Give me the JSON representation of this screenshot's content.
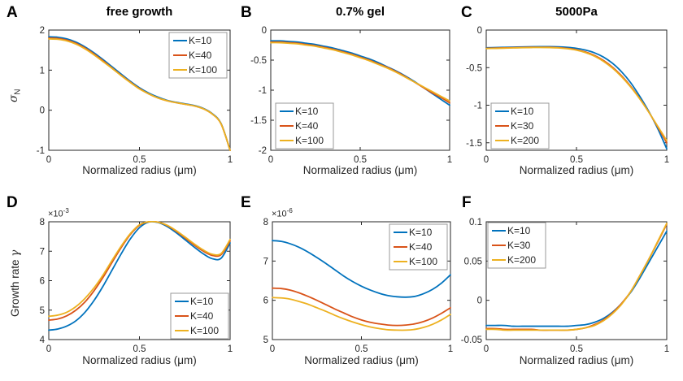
{
  "labels": {
    "xlabel": "Normalized radius (μm)"
  },
  "colors": {
    "axis": "#262626",
    "tick_text": "#262626",
    "legend_border": "#999999",
    "series_blue": "#0072BD",
    "series_orange": "#D95319",
    "series_yellow": "#EDB120"
  },
  "chart_data": [
    {
      "type": "line",
      "letter": "A",
      "title": "free growth",
      "ylabel_prefix": "",
      "ylabel_greek": "σ",
      "ylabel_sub": "N",
      "exp_base": "",
      "exp_power": "",
      "xlim": [
        0,
        1
      ],
      "ylim": [
        -1,
        2
      ],
      "xticks": [
        0,
        0.5,
        1
      ],
      "xtick_labels": [
        "0",
        "0.5",
        "1"
      ],
      "yticks": [
        -1,
        0,
        1,
        2
      ],
      "ytick_labels": [
        "-1",
        "0",
        "1",
        "2"
      ],
      "grid": false,
      "legend": {
        "position": "top-right"
      },
      "x": [
        0,
        0.05,
        0.1,
        0.15,
        0.2,
        0.25,
        0.3,
        0.35,
        0.4,
        0.45,
        0.5,
        0.55,
        0.6,
        0.65,
        0.7,
        0.75,
        0.8,
        0.85,
        0.9,
        0.95,
        1
      ],
      "series": [
        {
          "name": "K=10",
          "color": "#0072BD",
          "values": [
            1.83,
            1.82,
            1.78,
            1.7,
            1.58,
            1.43,
            1.26,
            1.08,
            0.9,
            0.72,
            0.56,
            0.43,
            0.33,
            0.25,
            0.2,
            0.16,
            0.12,
            0.05,
            -0.08,
            -0.33,
            -1.0
          ]
        },
        {
          "name": "K=40",
          "color": "#D95319",
          "values": [
            1.8,
            1.79,
            1.75,
            1.67,
            1.55,
            1.4,
            1.23,
            1.05,
            0.87,
            0.7,
            0.54,
            0.41,
            0.31,
            0.24,
            0.19,
            0.15,
            0.11,
            0.04,
            -0.09,
            -0.34,
            -1.0
          ]
        },
        {
          "name": "K=100",
          "color": "#EDB120",
          "values": [
            1.78,
            1.77,
            1.73,
            1.65,
            1.53,
            1.38,
            1.21,
            1.04,
            0.86,
            0.69,
            0.53,
            0.41,
            0.31,
            0.24,
            0.19,
            0.15,
            0.11,
            0.04,
            -0.09,
            -0.34,
            -1.0
          ]
        }
      ]
    },
    {
      "type": "line",
      "letter": "B",
      "title": "0.7% gel",
      "ylabel_prefix": "",
      "ylabel_greek": "",
      "ylabel_sub": "",
      "exp_base": "",
      "exp_power": "",
      "xlim": [
        0,
        1
      ],
      "ylim": [
        -2,
        0
      ],
      "xticks": [
        0,
        0.5,
        1
      ],
      "xtick_labels": [
        "0",
        "0.5",
        "1"
      ],
      "yticks": [
        -2,
        -1.5,
        -1,
        -0.5,
        0
      ],
      "ytick_labels": [
        "-2",
        "-1.5",
        "-1",
        "-0.5",
        "0"
      ],
      "grid": false,
      "legend": {
        "position": "bottom-left"
      },
      "x": [
        0,
        0.05,
        0.1,
        0.15,
        0.2,
        0.25,
        0.3,
        0.35,
        0.4,
        0.45,
        0.5,
        0.55,
        0.6,
        0.65,
        0.7,
        0.75,
        0.8,
        0.85,
        0.9,
        0.95,
        1
      ],
      "series": [
        {
          "name": "K=10",
          "color": "#0072BD",
          "values": [
            -0.18,
            -0.18,
            -0.19,
            -0.2,
            -0.22,
            -0.24,
            -0.27,
            -0.3,
            -0.34,
            -0.38,
            -0.43,
            -0.48,
            -0.54,
            -0.61,
            -0.68,
            -0.76,
            -0.85,
            -0.95,
            -1.05,
            -1.15,
            -1.25
          ]
        },
        {
          "name": "K=40",
          "color": "#D95319",
          "values": [
            -0.2,
            -0.2,
            -0.21,
            -0.22,
            -0.24,
            -0.26,
            -0.29,
            -0.32,
            -0.36,
            -0.4,
            -0.45,
            -0.5,
            -0.56,
            -0.62,
            -0.69,
            -0.77,
            -0.86,
            -0.95,
            -1.04,
            -1.12,
            -1.21
          ]
        },
        {
          "name": "K=100",
          "color": "#EDB120",
          "values": [
            -0.21,
            -0.21,
            -0.22,
            -0.23,
            -0.25,
            -0.27,
            -0.3,
            -0.33,
            -0.37,
            -0.41,
            -0.46,
            -0.51,
            -0.57,
            -0.63,
            -0.7,
            -0.78,
            -0.86,
            -0.94,
            -1.02,
            -1.1,
            -1.18
          ]
        }
      ]
    },
    {
      "type": "line",
      "letter": "C",
      "title": "5000Pa",
      "ylabel_prefix": "",
      "ylabel_greek": "",
      "ylabel_sub": "",
      "exp_base": "",
      "exp_power": "",
      "xlim": [
        0,
        1
      ],
      "ylim": [
        -1.6,
        0
      ],
      "xticks": [
        0,
        0.5,
        1
      ],
      "xtick_labels": [
        "0",
        "0.5",
        "1"
      ],
      "yticks": [
        -1.5,
        -1,
        -0.5,
        0
      ],
      "ytick_labels": [
        "-1.5",
        "-1",
        "-0.5",
        "0"
      ],
      "grid": false,
      "legend": {
        "position": "bottom-left"
      },
      "x": [
        0,
        0.05,
        0.1,
        0.15,
        0.2,
        0.25,
        0.3,
        0.35,
        0.4,
        0.45,
        0.5,
        0.55,
        0.6,
        0.65,
        0.7,
        0.75,
        0.8,
        0.85,
        0.9,
        0.95,
        1
      ],
      "series": [
        {
          "name": "K=10",
          "color": "#0072BD",
          "values": [
            -0.235,
            -0.233,
            -0.23,
            -0.227,
            -0.224,
            -0.222,
            -0.221,
            -0.221,
            -0.223,
            -0.23,
            -0.243,
            -0.266,
            -0.303,
            -0.36,
            -0.443,
            -0.556,
            -0.7,
            -0.88,
            -1.08,
            -1.31,
            -1.58
          ]
        },
        {
          "name": "K=30",
          "color": "#D95319",
          "values": [
            -0.242,
            -0.24,
            -0.237,
            -0.234,
            -0.231,
            -0.229,
            -0.228,
            -0.229,
            -0.234,
            -0.244,
            -0.262,
            -0.292,
            -0.338,
            -0.405,
            -0.495,
            -0.61,
            -0.748,
            -0.91,
            -1.09,
            -1.29,
            -1.5
          ]
        },
        {
          "name": "K=200",
          "color": "#EDB120",
          "values": [
            -0.246,
            -0.244,
            -0.241,
            -0.238,
            -0.235,
            -0.233,
            -0.232,
            -0.233,
            -0.238,
            -0.249,
            -0.268,
            -0.3,
            -0.348,
            -0.417,
            -0.508,
            -0.622,
            -0.758,
            -0.915,
            -1.09,
            -1.28,
            -1.47
          ]
        }
      ]
    },
    {
      "type": "line",
      "letter": "D",
      "title": "",
      "ylabel_prefix": "Growth rate ",
      "ylabel_greek": "γ",
      "ylabel_sub": "",
      "exp_base": "×10",
      "exp_power": "-3",
      "xlim": [
        0,
        1
      ],
      "ylim": [
        4,
        8
      ],
      "xticks": [
        0,
        0.5,
        1
      ],
      "xtick_labels": [
        "0",
        "0.5",
        "1"
      ],
      "yticks": [
        4,
        5,
        6,
        7,
        8
      ],
      "ytick_labels": [
        "4",
        "5",
        "6",
        "7",
        "8"
      ],
      "grid": false,
      "legend": {
        "position": "bottom-right"
      },
      "x": [
        0,
        0.05,
        0.1,
        0.15,
        0.2,
        0.25,
        0.3,
        0.35,
        0.4,
        0.45,
        0.5,
        0.55,
        0.6,
        0.65,
        0.7,
        0.75,
        0.8,
        0.85,
        0.9,
        0.95,
        1
      ],
      "series": [
        {
          "name": "K=10",
          "color": "#0072BD",
          "values": [
            4.32,
            4.36,
            4.46,
            4.64,
            4.93,
            5.33,
            5.82,
            6.37,
            6.92,
            7.42,
            7.8,
            7.99,
            7.98,
            7.85,
            7.64,
            7.4,
            7.15,
            6.92,
            6.75,
            6.76,
            7.28
          ]
        },
        {
          "name": "K=40",
          "color": "#D95319",
          "values": [
            4.66,
            4.7,
            4.81,
            5.0,
            5.28,
            5.66,
            6.12,
            6.63,
            7.13,
            7.57,
            7.88,
            8.0,
            7.99,
            7.88,
            7.69,
            7.46,
            7.22,
            7.01,
            6.86,
            6.88,
            7.35
          ]
        },
        {
          "name": "K=100",
          "color": "#EDB120",
          "values": [
            4.79,
            4.83,
            4.93,
            5.12,
            5.4,
            5.76,
            6.2,
            6.7,
            7.18,
            7.6,
            7.9,
            8.0,
            7.99,
            7.89,
            7.71,
            7.49,
            7.26,
            7.05,
            6.9,
            6.92,
            7.4
          ]
        }
      ]
    },
    {
      "type": "line",
      "letter": "E",
      "title": "",
      "ylabel_prefix": "",
      "ylabel_greek": "",
      "ylabel_sub": "",
      "exp_base": "×10",
      "exp_power": "-6",
      "xlim": [
        0,
        1
      ],
      "ylim": [
        5,
        8
      ],
      "xticks": [
        0,
        0.5,
        1
      ],
      "xtick_labels": [
        "0",
        "0.5",
        "1"
      ],
      "yticks": [
        5,
        6,
        7,
        8
      ],
      "ytick_labels": [
        "5",
        "6",
        "7",
        "8"
      ],
      "grid": false,
      "legend": {
        "position": "top-right"
      },
      "x": [
        0,
        0.05,
        0.1,
        0.15,
        0.2,
        0.25,
        0.3,
        0.35,
        0.4,
        0.45,
        0.5,
        0.55,
        0.6,
        0.65,
        0.7,
        0.75,
        0.8,
        0.85,
        0.9,
        0.95,
        1
      ],
      "series": [
        {
          "name": "K=10",
          "color": "#0072BD",
          "values": [
            7.52,
            7.5,
            7.44,
            7.35,
            7.23,
            7.09,
            6.94,
            6.78,
            6.62,
            6.48,
            6.36,
            6.26,
            6.18,
            6.12,
            6.09,
            6.08,
            6.1,
            6.17,
            6.28,
            6.44,
            6.65
          ]
        },
        {
          "name": "K=40",
          "color": "#D95319",
          "values": [
            6.31,
            6.3,
            6.26,
            6.19,
            6.1,
            6.0,
            5.89,
            5.78,
            5.68,
            5.58,
            5.5,
            5.44,
            5.4,
            5.37,
            5.36,
            5.37,
            5.4,
            5.46,
            5.55,
            5.67,
            5.81
          ]
        },
        {
          "name": "K=100",
          "color": "#EDB120",
          "values": [
            6.07,
            6.06,
            6.03,
            5.97,
            5.9,
            5.81,
            5.72,
            5.62,
            5.53,
            5.45,
            5.38,
            5.32,
            5.28,
            5.25,
            5.24,
            5.24,
            5.26,
            5.31,
            5.39,
            5.5,
            5.64
          ]
        }
      ]
    },
    {
      "type": "line",
      "letter": "F",
      "title": "",
      "ylabel_prefix": "",
      "ylabel_greek": "",
      "ylabel_sub": "",
      "exp_base": "",
      "exp_power": "",
      "xlim": [
        0,
        1
      ],
      "ylim": [
        -0.05,
        0.1
      ],
      "xticks": [
        0,
        0.5,
        1
      ],
      "xtick_labels": [
        "0",
        "0.5",
        "1"
      ],
      "yticks": [
        -0.05,
        0,
        0.05,
        0.1
      ],
      "ytick_labels": [
        "-0.05",
        "0",
        "0.05",
        "0.1"
      ],
      "grid": false,
      "legend": {
        "position": "top-left"
      },
      "x": [
        0,
        0.05,
        0.1,
        0.15,
        0.2,
        0.25,
        0.3,
        0.35,
        0.4,
        0.45,
        0.5,
        0.55,
        0.6,
        0.65,
        0.7,
        0.75,
        0.8,
        0.85,
        0.9,
        0.95,
        1
      ],
      "series": [
        {
          "name": "K=10",
          "color": "#0072BD",
          "values": [
            -0.032,
            -0.032,
            -0.032,
            -0.033,
            -0.033,
            -0.033,
            -0.033,
            -0.033,
            -0.033,
            -0.033,
            -0.032,
            -0.031,
            -0.028,
            -0.023,
            -0.015,
            -0.004,
            0.01,
            0.028,
            0.048,
            0.068,
            0.088
          ]
        },
        {
          "name": "K=30",
          "color": "#D95319",
          "values": [
            -0.036,
            -0.036,
            -0.037,
            -0.037,
            -0.037,
            -0.037,
            -0.038,
            -0.038,
            -0.038,
            -0.038,
            -0.037,
            -0.035,
            -0.031,
            -0.025,
            -0.016,
            -0.004,
            0.011,
            0.031,
            0.052,
            0.074,
            0.097
          ]
        },
        {
          "name": "K=200",
          "color": "#EDB120",
          "values": [
            -0.037,
            -0.037,
            -0.038,
            -0.038,
            -0.038,
            -0.038,
            -0.038,
            -0.038,
            -0.038,
            -0.038,
            -0.037,
            -0.035,
            -0.032,
            -0.026,
            -0.017,
            -0.005,
            0.011,
            0.031,
            0.052,
            0.075,
            0.098
          ]
        }
      ]
    }
  ]
}
